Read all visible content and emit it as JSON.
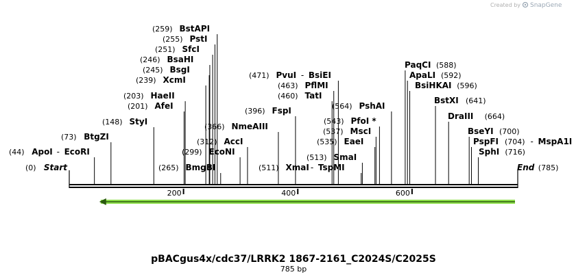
{
  "header": {
    "credit_prefix": "Created by",
    "brand": "SnapGene"
  },
  "map": {
    "title": "pBACgus4x/cdc37/LRRK2 1867-2161_C2024S/C2025S",
    "length_label": "785 bp",
    "length": 785,
    "ticks": [
      {
        "value": 200,
        "label": "200"
      },
      {
        "value": 400,
        "label": "400"
      },
      {
        "value": 600,
        "label": "600"
      }
    ],
    "feature": {
      "name": "orf-arrow",
      "start": 55,
      "end": 785,
      "direction": "reverse",
      "color": "#8ee04a"
    },
    "sites": [
      {
        "pos": 0,
        "pos_label": "(0)",
        "name": "Start",
        "italic": true
      },
      {
        "pos": 44,
        "pos_label": "(44)",
        "name": "ApoI",
        "partner": "EcoRI"
      },
      {
        "pos": 73,
        "pos_label": "(73)",
        "name": "BtgZI"
      },
      {
        "pos": 148,
        "pos_label": "(148)",
        "name": "StyI"
      },
      {
        "pos": 201,
        "pos_label": "(201)",
        "name": "AfeI"
      },
      {
        "pos": 203,
        "pos_label": "(203)",
        "name": "HaeII"
      },
      {
        "pos": 239,
        "pos_label": "(239)",
        "name": "XcmI"
      },
      {
        "pos": 245,
        "pos_label": "(245)",
        "name": "BsgI"
      },
      {
        "pos": 246,
        "pos_label": "(246)",
        "name": "BsaHI"
      },
      {
        "pos": 251,
        "pos_label": "(251)",
        "name": "SfcI"
      },
      {
        "pos": 255,
        "pos_label": "(255)",
        "name": "PstI"
      },
      {
        "pos": 259,
        "pos_label": "(259)",
        "name": "BstAPI"
      },
      {
        "pos": 265,
        "pos_label": "(265)",
        "name": "BmgBI"
      },
      {
        "pos": 299,
        "pos_label": "(299)",
        "name": "EcoNI"
      },
      {
        "pos": 312,
        "pos_label": "(312)",
        "name": "AccI"
      },
      {
        "pos": 366,
        "pos_label": "(366)",
        "name": "NmeAIII"
      },
      {
        "pos": 396,
        "pos_label": "(396)",
        "name": "FspI"
      },
      {
        "pos": 460,
        "pos_label": "(460)",
        "name": "TatI"
      },
      {
        "pos": 463,
        "pos_label": "(463)",
        "name": "PflMI"
      },
      {
        "pos": 471,
        "pos_label": "(471)",
        "name": "PvuI",
        "partner": "BsiEI"
      },
      {
        "pos": 511,
        "pos_label": "(511)",
        "name": "XmaI",
        "partner": "TspMI"
      },
      {
        "pos": 513,
        "pos_label": "(513)",
        "name": "SmaI"
      },
      {
        "pos": 535,
        "pos_label": "(535)",
        "name": "EaeI"
      },
      {
        "pos": 537,
        "pos_label": "(537)",
        "name": "MscI"
      },
      {
        "pos": 543,
        "pos_label": "(543)",
        "name": "PfoI *"
      },
      {
        "pos": 564,
        "pos_label": "(564)",
        "name": "PshAI"
      },
      {
        "pos": 588,
        "pos_label": "(588)",
        "name": "PaqCI"
      },
      {
        "pos": 592,
        "pos_label": "(592)",
        "name": "ApaLI"
      },
      {
        "pos": 596,
        "pos_label": "(596)",
        "name": "BsiHKAI"
      },
      {
        "pos": 641,
        "pos_label": "(641)",
        "name": "BstXI"
      },
      {
        "pos": 664,
        "pos_label": "(664)",
        "name": "DraIII"
      },
      {
        "pos": 700,
        "pos_label": "(700)",
        "name": "BseYI"
      },
      {
        "pos": 704,
        "pos_label": "(704)",
        "name": "PspFI",
        "partner": "MspA1I"
      },
      {
        "pos": 716,
        "pos_label": "(716)",
        "name": "SphI"
      },
      {
        "pos": 785,
        "pos_label": "(785)",
        "name": "End",
        "italic": true
      }
    ]
  }
}
